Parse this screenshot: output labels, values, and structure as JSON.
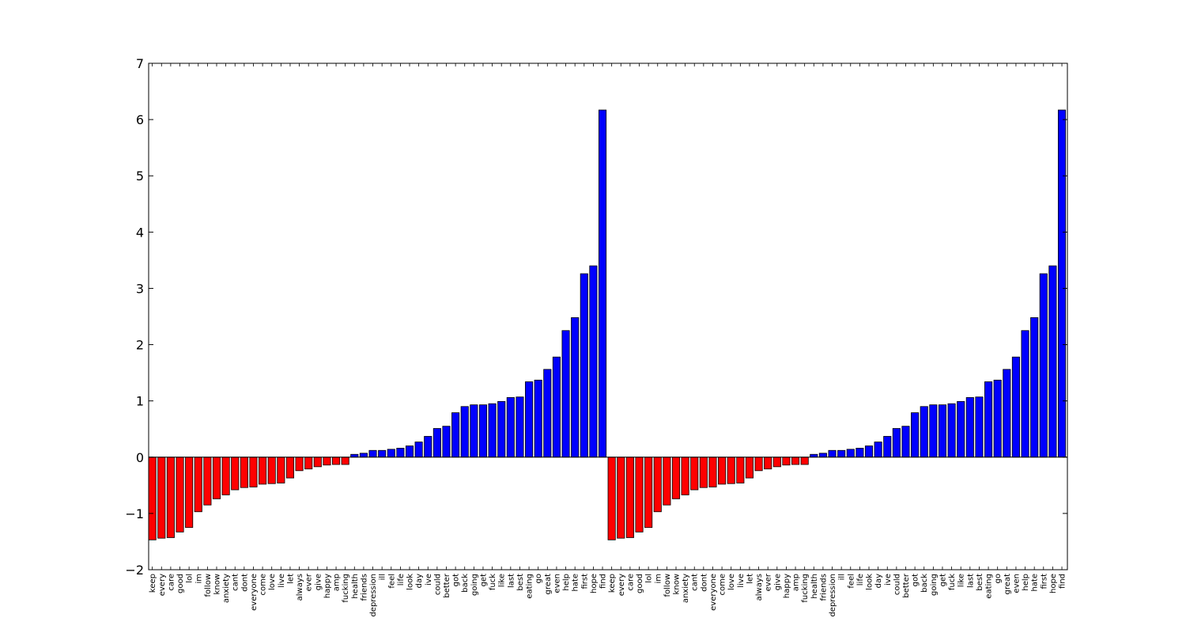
{
  "chart_data": {
    "type": "bar",
    "title": "",
    "xlabel": "",
    "ylabel": "",
    "ylim": [
      -2,
      7
    ],
    "yticks": [
      -2,
      -1,
      0,
      1,
      2,
      3,
      4,
      5,
      6,
      7
    ],
    "ytick_labels": [
      "−2",
      "−1",
      "0",
      "1",
      "2",
      "3",
      "4",
      "5",
      "6",
      "7"
    ],
    "grid": false,
    "legend": "none",
    "colors": {
      "negative": "#ff0000",
      "positive": "#0000ff",
      "edge": "#000000"
    },
    "categories": [
      "keep",
      "every",
      "care",
      "good",
      "lol",
      "im",
      "follow",
      "know",
      "anxiety",
      "cant",
      "dont",
      "everyone",
      "come",
      "love",
      "live",
      "let",
      "always",
      "ever",
      "give",
      "happy",
      "amp",
      "fucking",
      "health",
      "friends",
      "depression",
      "ill",
      "feel",
      "life",
      "look",
      "day",
      "ive",
      "could",
      "better",
      "got",
      "back",
      "going",
      "get",
      "fuck",
      "like",
      "last",
      "best",
      "eating",
      "go",
      "great",
      "even",
      "help",
      "hate",
      "first",
      "hope",
      "find",
      "keep",
      "every",
      "care",
      "good",
      "lol",
      "im",
      "follow",
      "know",
      "anxiety",
      "cant",
      "dont",
      "everyone",
      "come",
      "love",
      "live",
      "let",
      "always",
      "ever",
      "give",
      "happy",
      "amp",
      "fucking",
      "health",
      "friends",
      "depression",
      "ill",
      "feel",
      "life",
      "look",
      "day",
      "ive",
      "could",
      "better",
      "got",
      "back",
      "going",
      "get",
      "fuck",
      "like",
      "last",
      "best",
      "eating",
      "go",
      "great",
      "even",
      "help",
      "hate",
      "first",
      "hope",
      "find"
    ],
    "values": [
      -1.47,
      -1.44,
      -1.43,
      -1.33,
      -1.25,
      -0.97,
      -0.85,
      -0.74,
      -0.67,
      -0.58,
      -0.54,
      -0.53,
      -0.48,
      -0.47,
      -0.46,
      -0.37,
      -0.24,
      -0.21,
      -0.17,
      -0.14,
      -0.13,
      -0.13,
      0.05,
      0.07,
      0.12,
      0.12,
      0.14,
      0.16,
      0.2,
      0.27,
      0.37,
      0.51,
      0.55,
      0.79,
      0.9,
      0.93,
      0.93,
      0.95,
      0.99,
      1.06,
      1.07,
      1.34,
      1.37,
      1.56,
      1.78,
      2.25,
      2.48,
      3.26,
      3.4,
      6.17,
      -1.47,
      -1.44,
      -1.43,
      -1.33,
      -1.25,
      -0.97,
      -0.85,
      -0.74,
      -0.67,
      -0.58,
      -0.54,
      -0.53,
      -0.48,
      -0.47,
      -0.46,
      -0.37,
      -0.24,
      -0.21,
      -0.17,
      -0.14,
      -0.13,
      -0.13,
      0.05,
      0.07,
      0.12,
      0.12,
      0.14,
      0.16,
      0.2,
      0.27,
      0.37,
      0.51,
      0.55,
      0.79,
      0.9,
      0.93,
      0.93,
      0.95,
      0.99,
      1.06,
      1.07,
      1.34,
      1.37,
      1.56,
      1.78,
      2.25,
      2.48,
      3.26,
      3.4,
      6.17
    ]
  }
}
